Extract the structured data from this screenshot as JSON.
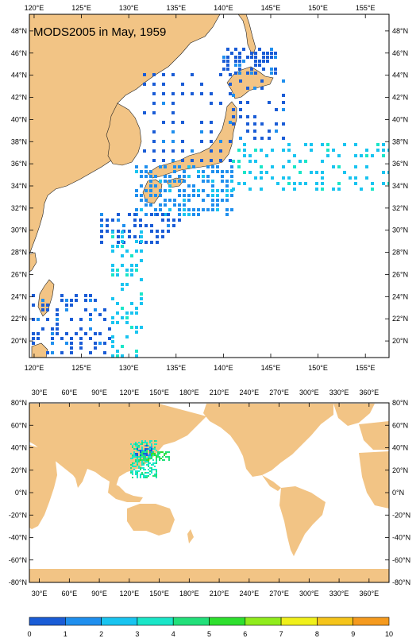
{
  "colors": {
    "land": "#f2c485",
    "ocean": "#ffffff",
    "frame": "#000000"
  },
  "regional_map": {
    "title": "MODS2005 in May, 1959",
    "lon_labels": [
      "120°E",
      "125°E",
      "130°E",
      "135°E",
      "140°E",
      "145°E",
      "150°E",
      "155°E"
    ],
    "lat_labels": [
      "48°N",
      "46°N",
      "44°N",
      "42°N",
      "40°N",
      "38°N",
      "36°N",
      "34°N",
      "32°N",
      "30°N",
      "28°N",
      "26°N",
      "24°N",
      "22°N",
      "20°N"
    ],
    "lon_range": [
      119.5,
      157.5
    ],
    "lat_range": [
      18.5,
      49.5
    ]
  },
  "global_map": {
    "lon_labels": [
      "30°E",
      "60°E",
      "90°E",
      "120°E",
      "150°E",
      "180°E",
      "210°E",
      "240°E",
      "270°E",
      "300°E",
      "330°E",
      "360°E"
    ],
    "lat_labels": [
      "80°N",
      "60°N",
      "40°N",
      "20°N",
      "0°N",
      "-20°N",
      "-40°N",
      "-60°N",
      "-80°N"
    ],
    "lon_range": [
      20,
      380
    ],
    "lat_range": [
      -80,
      80
    ]
  },
  "colorbar": {
    "labels": [
      "0",
      "1",
      "2",
      "3",
      "4",
      "5",
      "6",
      "7",
      "8",
      "9",
      "10"
    ],
    "colors": [
      "#1a5cd6",
      "#1f8fee",
      "#19c4f0",
      "#1ae6c8",
      "#22e07a",
      "#2ee02e",
      "#90ec1c",
      "#f0f01a",
      "#f5c41a",
      "#f59a1e",
      "#ee5a1e"
    ]
  }
}
